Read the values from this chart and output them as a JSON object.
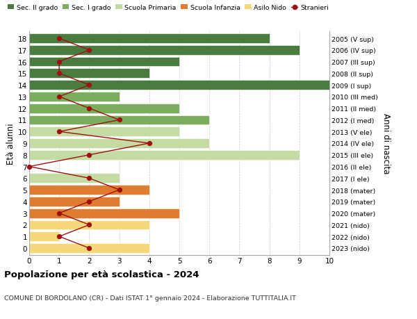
{
  "ages": [
    18,
    17,
    16,
    15,
    14,
    13,
    12,
    11,
    10,
    9,
    8,
    7,
    6,
    5,
    4,
    3,
    2,
    1,
    0
  ],
  "years": [
    "2005 (V sup)",
    "2006 (IV sup)",
    "2007 (III sup)",
    "2008 (II sup)",
    "2009 (I sup)",
    "2010 (III med)",
    "2011 (II med)",
    "2012 (I med)",
    "2013 (V ele)",
    "2014 (IV ele)",
    "2015 (III ele)",
    "2016 (II ele)",
    "2017 (I ele)",
    "2018 (mater)",
    "2019 (mater)",
    "2020 (mater)",
    "2021 (nido)",
    "2022 (nido)",
    "2023 (nido)"
  ],
  "bar_values": [
    8,
    9,
    5,
    4,
    10,
    3,
    5,
    6,
    5,
    6,
    9,
    0,
    3,
    4,
    3,
    5,
    4,
    1,
    4
  ],
  "bar_colors": [
    "#4a7c3f",
    "#4a7c3f",
    "#4a7c3f",
    "#4a7c3f",
    "#4a7c3f",
    "#7aad5e",
    "#7aad5e",
    "#7aad5e",
    "#c5dba4",
    "#c5dba4",
    "#c5dba4",
    "#c5dba4",
    "#c5dba4",
    "#e07c30",
    "#e07c30",
    "#e07c30",
    "#f5d87a",
    "#f5d87a",
    "#f5d87a"
  ],
  "stranieri": [
    1,
    2,
    1,
    1,
    2,
    1,
    2,
    3,
    1,
    4,
    2,
    0,
    2,
    3,
    2,
    1,
    2,
    1,
    2
  ],
  "stranieri_color": "#a01010",
  "legend_labels": [
    "Sec. II grado",
    "Sec. I grado",
    "Scuola Primaria",
    "Scuola Infanzia",
    "Asilo Nido",
    "Stranieri"
  ],
  "legend_colors": [
    "#4a7c3f",
    "#7aad5e",
    "#c5dba4",
    "#e07c30",
    "#f5d87a",
    "#a01010"
  ],
  "title": "Popolazione per età scolastica - 2024",
  "subtitle": "COMUNE DI BORDOLANO (CR) - Dati ISTAT 1° gennaio 2024 - Elaborazione TUTTITALIA.IT",
  "ylabel": "Età alunni",
  "ylabel2": "Anni di nascita",
  "xlim_max": 10,
  "background_color": "#ffffff",
  "grid_color": "#cccccc"
}
